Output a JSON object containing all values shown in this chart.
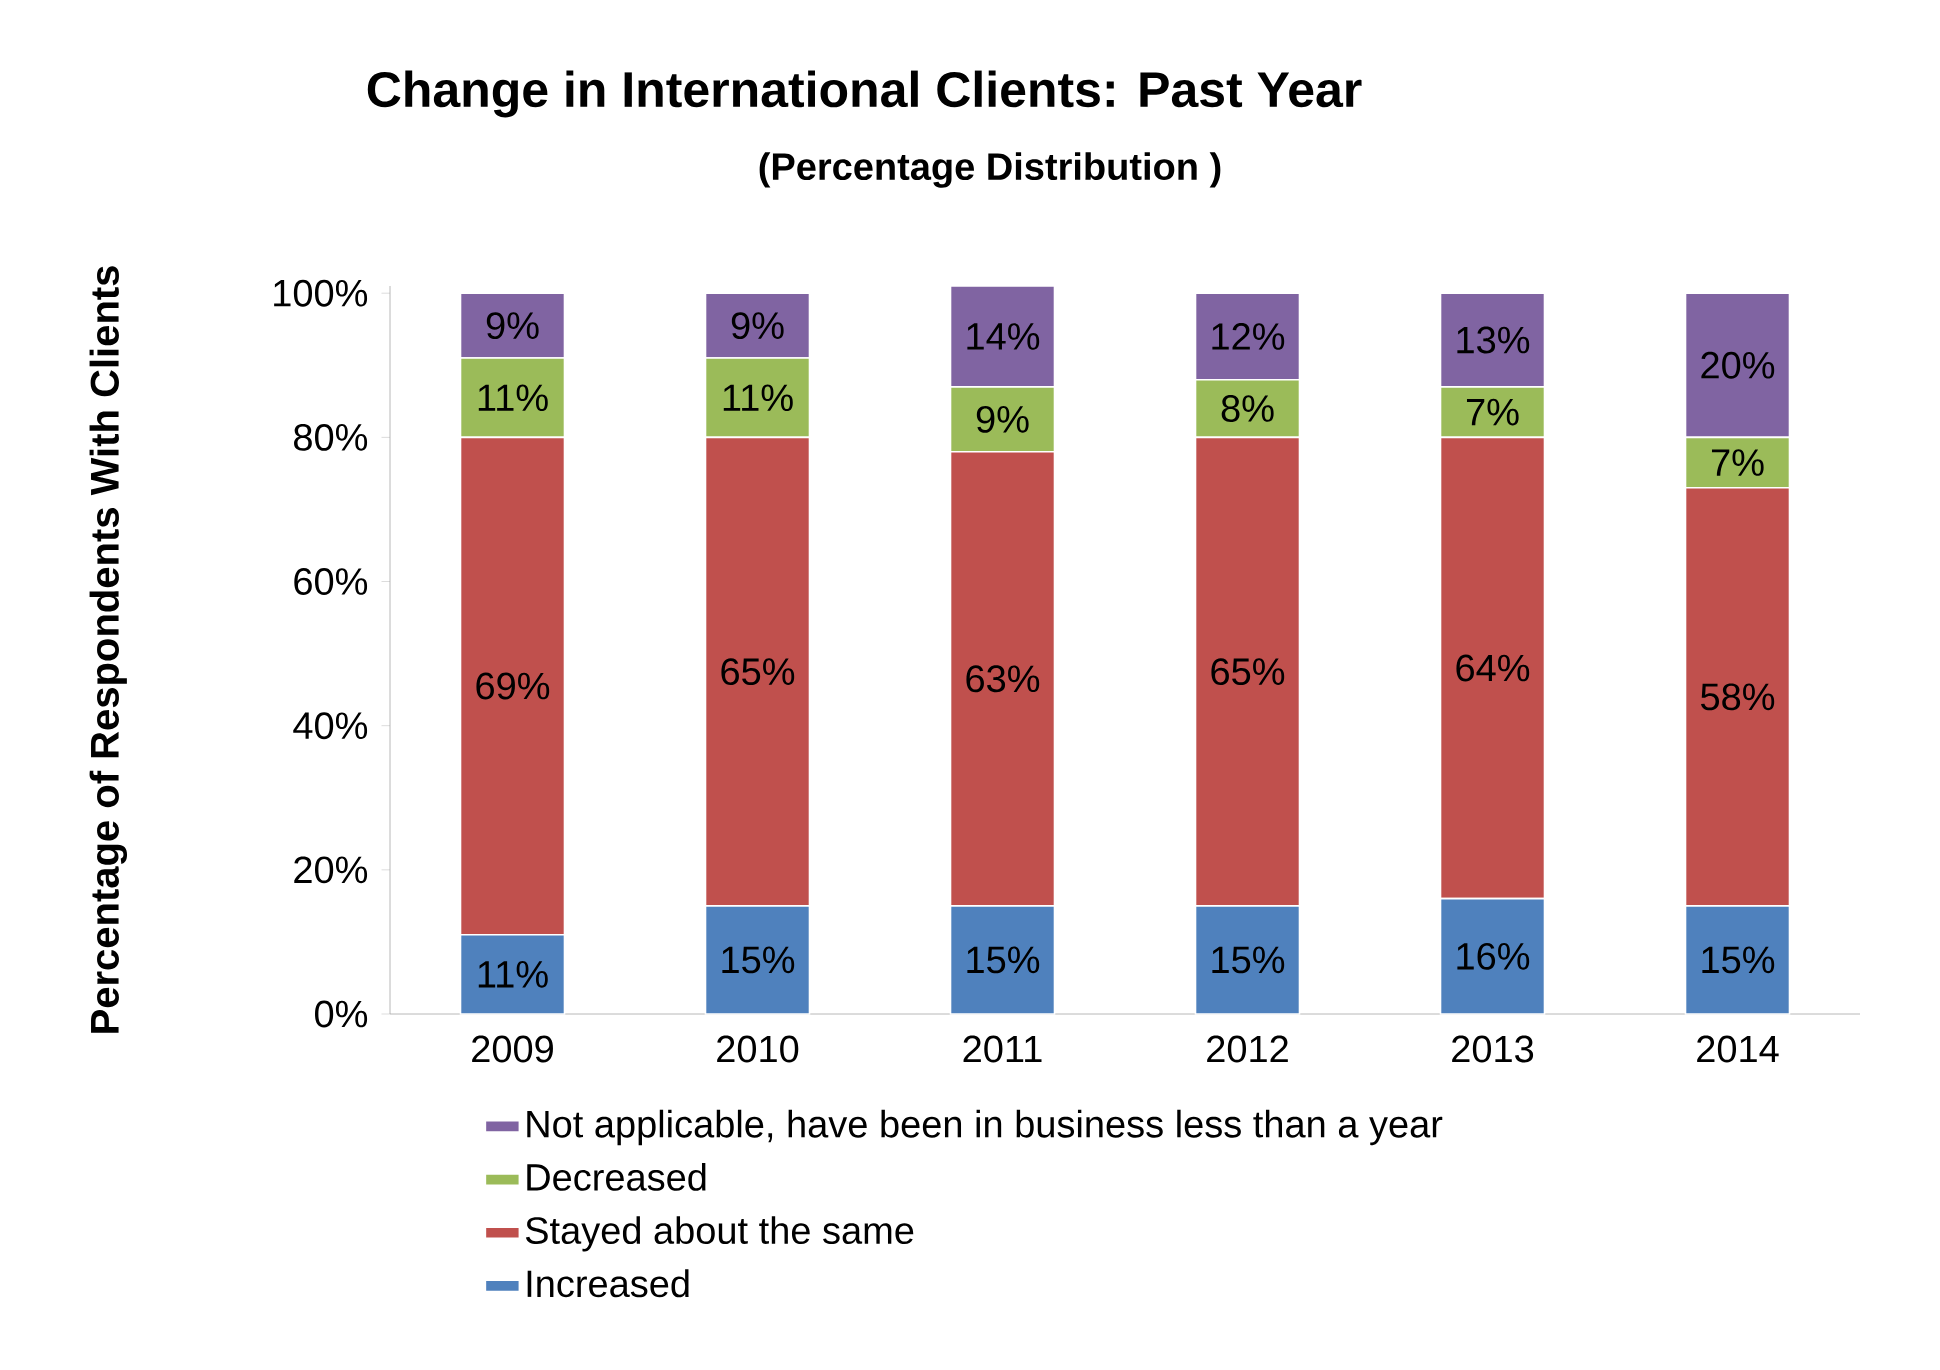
{
  "chart_data": {
    "type": "bar",
    "stacked": true,
    "title": "Change in International Clients: Past Year",
    "subtitle": "(Percentage Distribution )",
    "ylabel": "Percentage of Respondents With Clients",
    "categories": [
      "2009",
      "2010",
      "2011",
      "2012",
      "2013",
      "2014"
    ],
    "ylim": [
      0,
      101
    ],
    "yticks": [
      {
        "value": 0,
        "label": "0%"
      },
      {
        "value": 20,
        "label": "20%"
      },
      {
        "value": 40,
        "label": "40%"
      },
      {
        "value": 60,
        "label": "60%"
      },
      {
        "value": 80,
        "label": "80%"
      },
      {
        "value": 100,
        "label": "100%"
      }
    ],
    "legend": "bottom",
    "series": [
      {
        "name": "Increased",
        "color": "#4f81bd",
        "values": [
          11,
          15,
          15,
          15,
          16,
          15
        ],
        "value_labels": [
          "11%",
          "15%",
          "15%",
          "15%",
          "16%",
          "15%"
        ]
      },
      {
        "name": "Stayed about the same",
        "color": "#c0504d",
        "values": [
          69,
          65,
          63,
          65,
          64,
          58
        ],
        "value_labels": [
          "69%",
          "65%",
          "63%",
          "65%",
          "64%",
          "58%"
        ]
      },
      {
        "name": "Decreased",
        "color": "#9bbb59",
        "values": [
          11,
          11,
          9,
          8,
          7,
          7
        ],
        "value_labels": [
          "11%",
          "11%",
          "9%",
          "8%",
          "7%",
          "7%"
        ]
      },
      {
        "name": "Not applicable, have been in business less than a year",
        "color": "#8064a2",
        "values": [
          9,
          9,
          14,
          12,
          13,
          20
        ],
        "value_labels": [
          "9%",
          "9%",
          "14%",
          "12%",
          "13%",
          "20%"
        ]
      }
    ]
  }
}
